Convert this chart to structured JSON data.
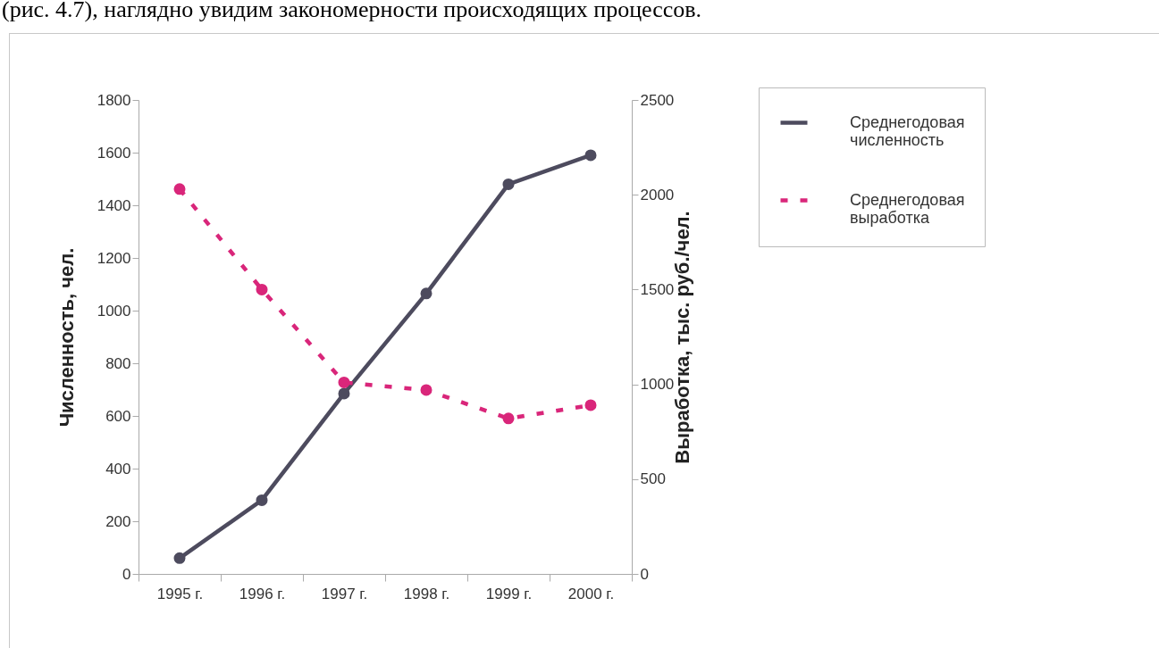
{
  "chart_data": {
    "type": "line",
    "annotations": [
      "(рис. 4.7), наглядно увидим закономерности происходящих процессов."
    ],
    "ylabel": "Численность, чел.",
    "y2label": "Выработка, тыс. руб./чел.",
    "categories": [
      "1995 г.",
      "1996 г.",
      "1997 г.",
      "1998 г.",
      "1999 г.",
      "2000 г."
    ],
    "series": [
      {
        "name": "Среднегодовая численность",
        "color": "#4d4b5e",
        "line_style": "solid",
        "marker": "circle",
        "values": [
          60,
          280,
          685,
          1065,
          1480,
          1590
        ]
      },
      {
        "name": "Среднегодовая выработка",
        "color": "#d9267a",
        "line_style": "dashed",
        "marker": "circle",
        "axis": "y2",
        "values": [
          2030,
          1500,
          1010,
          970,
          820,
          890
        ]
      }
    ],
    "ylim": [
      0,
      1800
    ],
    "yticks": [
      0,
      200,
      400,
      600,
      800,
      1000,
      1200,
      1400,
      1600,
      1800
    ],
    "y2lim": [
      0,
      2500
    ],
    "y2ticks": [
      0,
      500,
      1000,
      1500,
      2000,
      2500
    ],
    "grid": false,
    "legend": "right"
  }
}
